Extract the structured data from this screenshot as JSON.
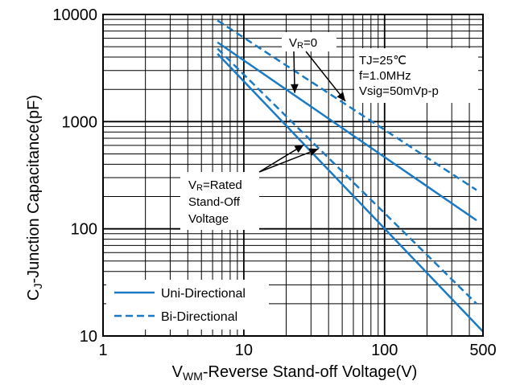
{
  "chart_data": {
    "type": "line",
    "xlabel": {
      "prefix": "V",
      "sub": "WM",
      "suffix": "-Reverse Stand-off Voltage(V)"
    },
    "ylabel": {
      "prefix": "C",
      "sub": "J",
      "suffix": "-Junction Capacitance(pF)"
    },
    "x_scale": "log",
    "y_scale": "log",
    "xlim": [
      1,
      500
    ],
    "ylim": [
      10,
      10000
    ],
    "x_ticks": [
      {
        "value": 1,
        "label": "1"
      },
      {
        "value": 10,
        "label": "10"
      },
      {
        "value": 100,
        "label": "100"
      },
      {
        "value": 500,
        "label": "500"
      }
    ],
    "y_ticks": [
      {
        "value": 10,
        "label": "10"
      },
      {
        "value": 100,
        "label": "100"
      },
      {
        "value": 1000,
        "label": "1000"
      },
      {
        "value": 10000,
        "label": "10000"
      }
    ],
    "grid": true,
    "conditions": [
      "TJ=25℃",
      "f=1.0MHz",
      "Vsig=50mVp-p"
    ],
    "annotation_vr0": {
      "prefix": "V",
      "sub": "R",
      "suffix": "=0"
    },
    "annotation_rated": {
      "line1_prefix": "V",
      "line1_sub": "R",
      "line1_suffix": "=Rated",
      "line2": "Stand-Off",
      "line3": "Voltage"
    },
    "legend": {
      "placement": "bottom-left",
      "entries": [
        {
          "label": "Uni-Directional",
          "style": "solid"
        },
        {
          "label": "Bi-Directional",
          "style": "dashed"
        }
      ]
    },
    "series": [
      {
        "group": "Uni-Directional",
        "condition": "VR=0",
        "style": "solid",
        "x": [
          6.5,
          450
        ],
        "y": [
          5500,
          120
        ]
      },
      {
        "group": "Uni-Directional",
        "condition": "VR=Rated",
        "style": "solid",
        "x": [
          6.5,
          500
        ],
        "y": [
          4300,
          11
        ]
      },
      {
        "group": "Bi-Directional",
        "condition": "VR=0",
        "style": "dashed",
        "x": [
          6.5,
          450
        ],
        "y": [
          8800,
          230
        ]
      },
      {
        "group": "Bi-Directional",
        "condition": "VR=Rated",
        "style": "dashed",
        "x": [
          6.5,
          450
        ],
        "y": [
          4800,
          20
        ]
      }
    ],
    "line_color": "#1a7bc4"
  }
}
